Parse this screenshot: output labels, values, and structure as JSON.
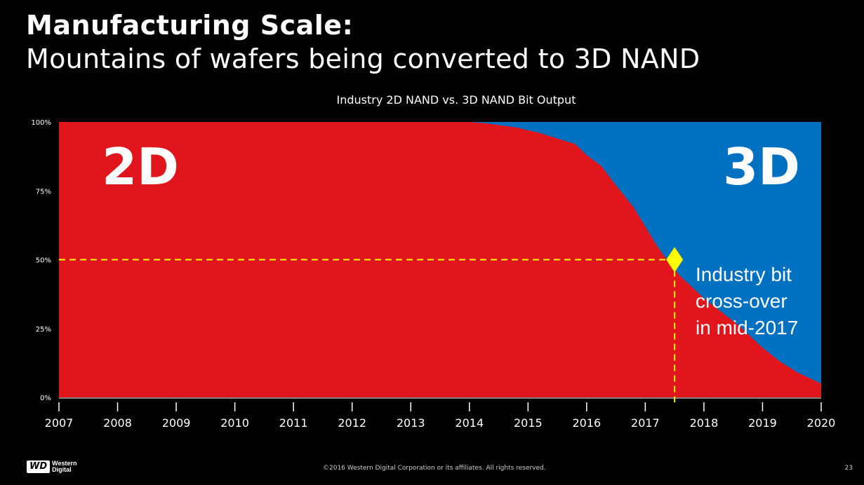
{
  "slide": {
    "title": "Manufacturing Scale:",
    "subtitle": "Mountains of wafers being converted to 3D NAND"
  },
  "chart_data": {
    "type": "area",
    "title": "Industry 2D NAND vs. 3D NAND Bit Output",
    "xlabel": "",
    "ylabel": "",
    "xlim": [
      2007,
      2020
    ],
    "ylim": [
      0,
      100
    ],
    "x_ticks": [
      "2007",
      "2008",
      "2009",
      "2010",
      "2011",
      "2012",
      "2013",
      "2014",
      "2015",
      "2016",
      "2017",
      "2018",
      "2019",
      "2020"
    ],
    "y_ticks": [
      "0%",
      "25%",
      "50%",
      "75%",
      "100%"
    ],
    "series": [
      {
        "name": "2D",
        "color": "#e0161c",
        "x": [
          2007,
          2014,
          2014.3,
          2014.8,
          2015.2,
          2015.5,
          2015.8,
          2016.0,
          2016.25,
          2016.5,
          2016.8,
          2017.0,
          2017.2,
          2017.4,
          2017.6,
          2017.8,
          2018.0,
          2018.3,
          2018.6,
          2019.0,
          2019.3,
          2019.6,
          2020.0
        ],
        "values": [
          100,
          100,
          99.5,
          98,
          96,
          94,
          92,
          88,
          84,
          77,
          69,
          62,
          55,
          49,
          44,
          40,
          36,
          31,
          26,
          18,
          13,
          9,
          5
        ]
      },
      {
        "name": "3D",
        "color": "#0070c0",
        "x": [
          2007,
          2014,
          2014.3,
          2014.8,
          2015.2,
          2015.5,
          2015.8,
          2016.0,
          2016.25,
          2016.5,
          2016.8,
          2017.0,
          2017.2,
          2017.4,
          2017.6,
          2017.8,
          2018.0,
          2018.3,
          2018.6,
          2019.0,
          2019.3,
          2019.6,
          2020.0
        ],
        "values": [
          0,
          0,
          0.5,
          2,
          4,
          6,
          8,
          12,
          16,
          23,
          31,
          38,
          45,
          51,
          56,
          60,
          64,
          69,
          74,
          82,
          87,
          91,
          95
        ]
      }
    ],
    "area_labels": {
      "left": "2D",
      "right": "3D"
    },
    "crossover": {
      "x": 2017.5,
      "y": 50,
      "label_lines": [
        "Industry bit",
        "cross-over",
        "in mid-2017"
      ],
      "marker_color": "#ffff00",
      "line_color": "#ffff00"
    }
  },
  "footer": {
    "logo_mark": "WD",
    "logo_text": "Western\nDigital",
    "copyright": "©2016  Western Digital Corporation  or its affiliates.  All rights reserved.",
    "page_number": "23"
  },
  "colors": {
    "background": "#000000",
    "text": "#ffffff"
  }
}
